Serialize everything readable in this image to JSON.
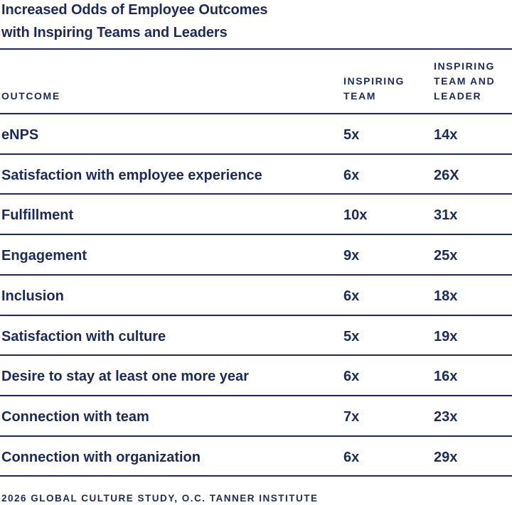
{
  "title": {
    "line1": "Increased Odds of Employee Outcomes",
    "line2": "with Inspiring Teams and Leaders"
  },
  "header": {
    "col1": [
      "OUTCOME"
    ],
    "col2": [
      "INSPIRING",
      "TEAM"
    ],
    "col3": [
      "INSPIRING",
      "TEAM AND",
      "LEADER"
    ]
  },
  "rows": [
    {
      "outcome": "eNPS",
      "team": "5x",
      "team_and_leader": "14x"
    },
    {
      "outcome": "Satisfaction with employee experience",
      "team": "6x",
      "team_and_leader": "26X"
    },
    {
      "outcome": "Fulfillment",
      "team": "10x",
      "team_and_leader": "31x"
    },
    {
      "outcome": "Engagement",
      "team": "9x",
      "team_and_leader": "25x"
    },
    {
      "outcome": "Inclusion",
      "team": "6x",
      "team_and_leader": "18x"
    },
    {
      "outcome": "Satisfaction with culture",
      "team": "5x",
      "team_and_leader": "19x"
    },
    {
      "outcome": "Desire to stay at least one more year",
      "team": "6x",
      "team_and_leader": "16x"
    },
    {
      "outcome": "Connection with team",
      "team": "7x",
      "team_and_leader": "23x"
    },
    {
      "outcome": "Connection with organization",
      "team": "6x",
      "team_and_leader": "29x"
    }
  ],
  "footer": "2026 GLOBAL CULTURE STUDY, O.C. TANNER INSTITUTE",
  "colors": {
    "text": "#1b2a5c",
    "rule": "#1b2a5c",
    "background": "#ffffff"
  }
}
